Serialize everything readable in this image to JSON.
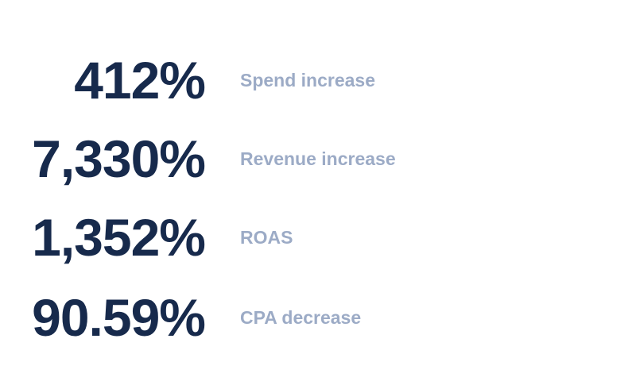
{
  "stats": [
    {
      "value": "412%",
      "label": "Spend increase"
    },
    {
      "value": "7,330%",
      "label": "Revenue increase"
    },
    {
      "value": "1,352%",
      "label": "ROAS"
    },
    {
      "value": "90.59%",
      "label": "CPA decrease"
    }
  ]
}
